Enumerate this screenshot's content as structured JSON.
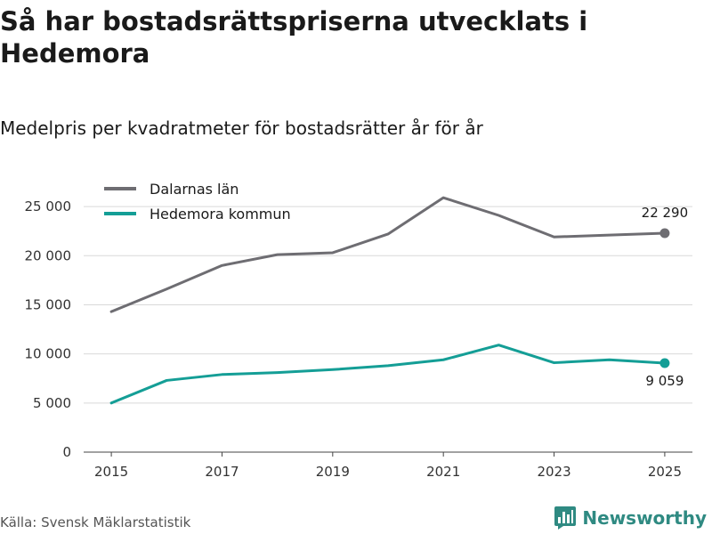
{
  "header": {
    "title": "Så har bostadsrättspriserna utvecklats i Hedemora",
    "subtitle": "Medelpris per kvadratmeter för bostadsrätter år för år"
  },
  "footer": {
    "source": "Källa: Svensk Mäklarstatistik",
    "brand": "Newsworthy",
    "brand_icon": "bar-chart-logo-icon"
  },
  "chart_data": {
    "type": "line",
    "title": "Så har bostadsrättspriserna utvecklats i Hedemora",
    "subtitle": "Medelpris per kvadratmeter för bostadsrätter år för år",
    "x": [
      2015,
      2016,
      2017,
      2018,
      2019,
      2020,
      2021,
      2022,
      2023,
      2024,
      2025
    ],
    "xticks": [
      2015,
      2017,
      2019,
      2021,
      2023,
      2025
    ],
    "yticks": [
      0,
      5000,
      10000,
      15000,
      20000,
      25000
    ],
    "ytick_labels": [
      "0",
      "5 000",
      "10 000",
      "15 000",
      "20 000",
      "25 000"
    ],
    "ylim": [
      0,
      27000
    ],
    "xlim": [
      2014.5,
      2025.5
    ],
    "grid": true,
    "legend_position": "top-left",
    "series": [
      {
        "name": "Dalarnas län",
        "color": "#6e6d72",
        "values": [
          14300,
          16600,
          19000,
          20100,
          20300,
          22200,
          25900,
          24100,
          21900,
          22100,
          22290
        ],
        "end_label": "22 290"
      },
      {
        "name": "Hedemora kommun",
        "color": "#149e96",
        "values": [
          5000,
          7300,
          7900,
          8100,
          8400,
          8800,
          9400,
          10900,
          9100,
          9400,
          9059
        ],
        "end_label": "9 059"
      }
    ]
  }
}
